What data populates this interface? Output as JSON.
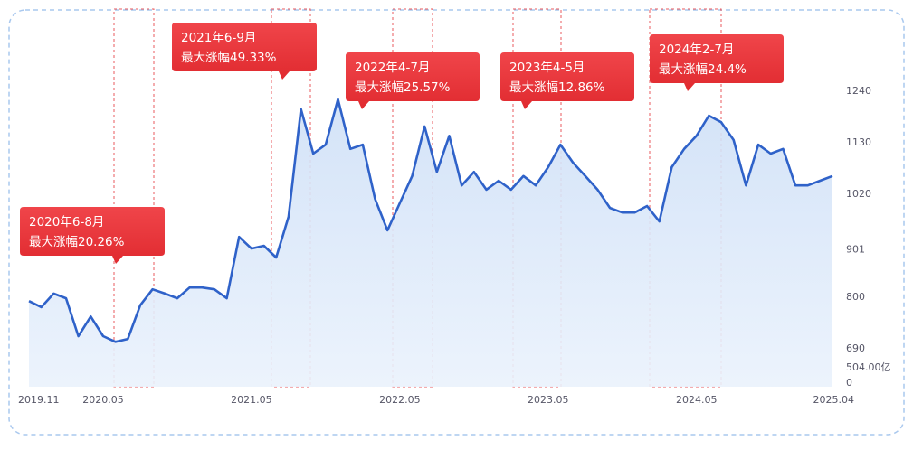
{
  "chart_data": {
    "type": "area-line",
    "color": "#2f62c9",
    "x": [
      "2019-11",
      "2019-12",
      "2020-01",
      "2020-02",
      "2020-03",
      "2020-04",
      "2020-05",
      "2020-06",
      "2020-07",
      "2020-08",
      "2020-09",
      "2020-10",
      "2020-11",
      "2020-12",
      "2021-01",
      "2021-02",
      "2021-03",
      "2021-04",
      "2021-05",
      "2021-06",
      "2021-07",
      "2021-08",
      "2021-09",
      "2021-10",
      "2021-11",
      "2021-12",
      "2022-01",
      "2022-02",
      "2022-03",
      "2022-04",
      "2022-05",
      "2022-06",
      "2022-07",
      "2022-08",
      "2022-09",
      "2022-10",
      "2022-11",
      "2022-12",
      "2023-01",
      "2023-02",
      "2023-03",
      "2023-04",
      "2023-05",
      "2023-06",
      "2023-07",
      "2023-08",
      "2023-09",
      "2023-10",
      "2023-11",
      "2023-12",
      "2024-01",
      "2024-02",
      "2024-03",
      "2024-04",
      "2024-05",
      "2024-06",
      "2024-07",
      "2024-08",
      "2024-09",
      "2024-10",
      "2024-11",
      "2024-12",
      "2025-01",
      "2025-02",
      "2025-03",
      "2025-04"
    ],
    "values": [
      790,
      777,
      806,
      796,
      715,
      757,
      715,
      703,
      709,
      781,
      815,
      806,
      796,
      819,
      819,
      815,
      796,
      927,
      902,
      908,
      883,
      970,
      1200,
      1105,
      1124,
      1221,
      1115,
      1124,
      1008,
      941,
      999,
      1057,
      1163,
      1066,
      1143,
      1037,
      1066,
      1028,
      1047,
      1028,
      1057,
      1037,
      1076,
      1124,
      1086,
      1057,
      1028,
      989,
      979,
      979,
      993,
      960,
      1076,
      1115,
      1143,
      1186,
      1172,
      1134,
      1037,
      1124,
      1105,
      1115,
      1037,
      1037,
      1047,
      1057
    ],
    "xlim": [
      "2019-11",
      "2025-04"
    ],
    "xticks": [
      {
        "value": "2019-11",
        "label": "2019.11"
      },
      {
        "value": "2020-05",
        "label": "2020.05"
      },
      {
        "value": "2021-05",
        "label": "2021.05"
      },
      {
        "value": "2022-05",
        "label": "2022.05"
      },
      {
        "value": "2023-05",
        "label": "2023.05"
      },
      {
        "value": "2024-05",
        "label": "2024.05"
      },
      {
        "value": "2025-04",
        "label": "2025.04"
      }
    ],
    "ylim": [
      607,
      1406
    ],
    "yticks": [
      1240,
      1130,
      1020,
      901,
      800,
      690
    ],
    "y_min_label": "504.00亿",
    "y_zero_label": "0",
    "annotations": [
      {
        "period": "2020年6-8月",
        "gain": "最大涨幅20.26%"
      },
      {
        "period": "2021年6-9月",
        "gain": "最大涨幅49.33%"
      },
      {
        "period": "2022年4-7月",
        "gain": "最大涨幅25.57%"
      },
      {
        "period": "2023年4-5月",
        "gain": "最大涨幅12.86%"
      },
      {
        "period": "2024年2-7月",
        "gain": "最大涨幅24.4%"
      }
    ]
  }
}
